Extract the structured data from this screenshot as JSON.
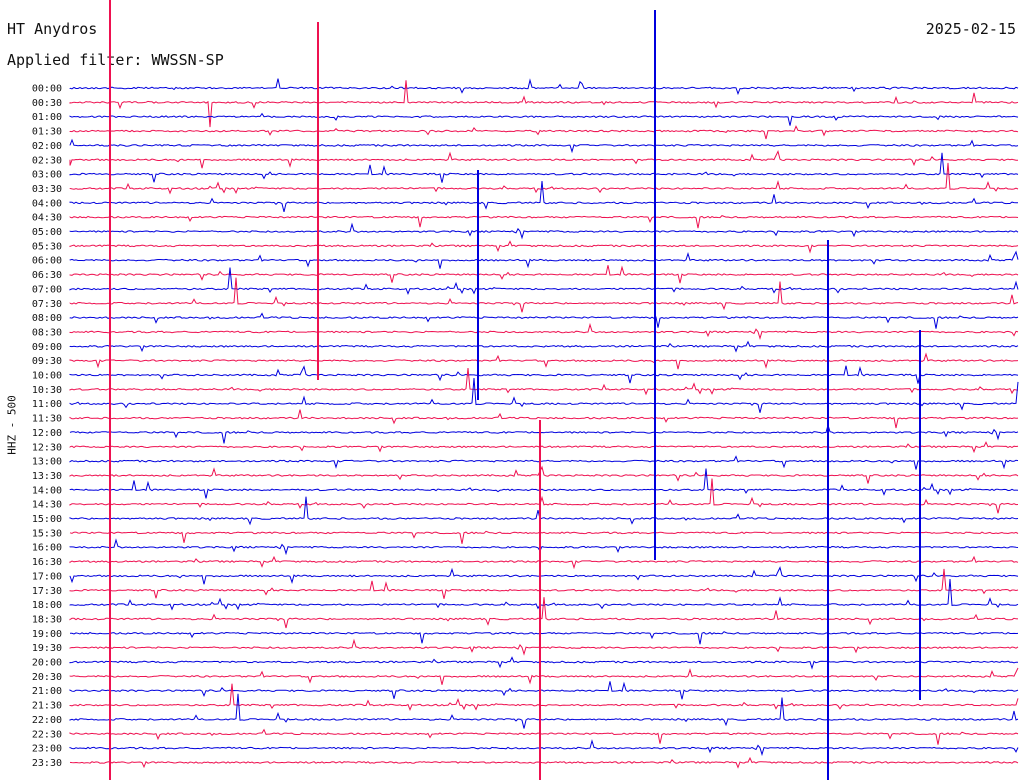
{
  "header": {
    "station": "HT Anydros",
    "date": "2025-02-15",
    "filter": "Applied filter: WWSSN-SP"
  },
  "chart_data": {
    "type": "line",
    "title": "HT Anydros",
    "ylabel": "HHZ - 500",
    "row_labels": [
      "00:00",
      "00:30",
      "01:00",
      "01:30",
      "02:00",
      "02:30",
      "03:00",
      "03:30",
      "04:00",
      "04:30",
      "05:00",
      "05:30",
      "06:00",
      "06:30",
      "07:00",
      "07:30",
      "08:00",
      "08:30",
      "09:00",
      "09:30",
      "10:00",
      "10:30",
      "11:00",
      "11:30",
      "12:00",
      "12:30",
      "13:00",
      "13:30",
      "14:00",
      "14:30",
      "15:00",
      "15:30",
      "16:00",
      "16:30",
      "17:00",
      "17:30",
      "18:00",
      "18:30",
      "19:00",
      "19:30",
      "20:00",
      "20:30",
      "21:00",
      "21:30",
      "22:00",
      "22:30",
      "23:00",
      "23:30"
    ],
    "trace_colors": [
      "#0000dd",
      "#ee1150"
    ],
    "grid": false
  }
}
